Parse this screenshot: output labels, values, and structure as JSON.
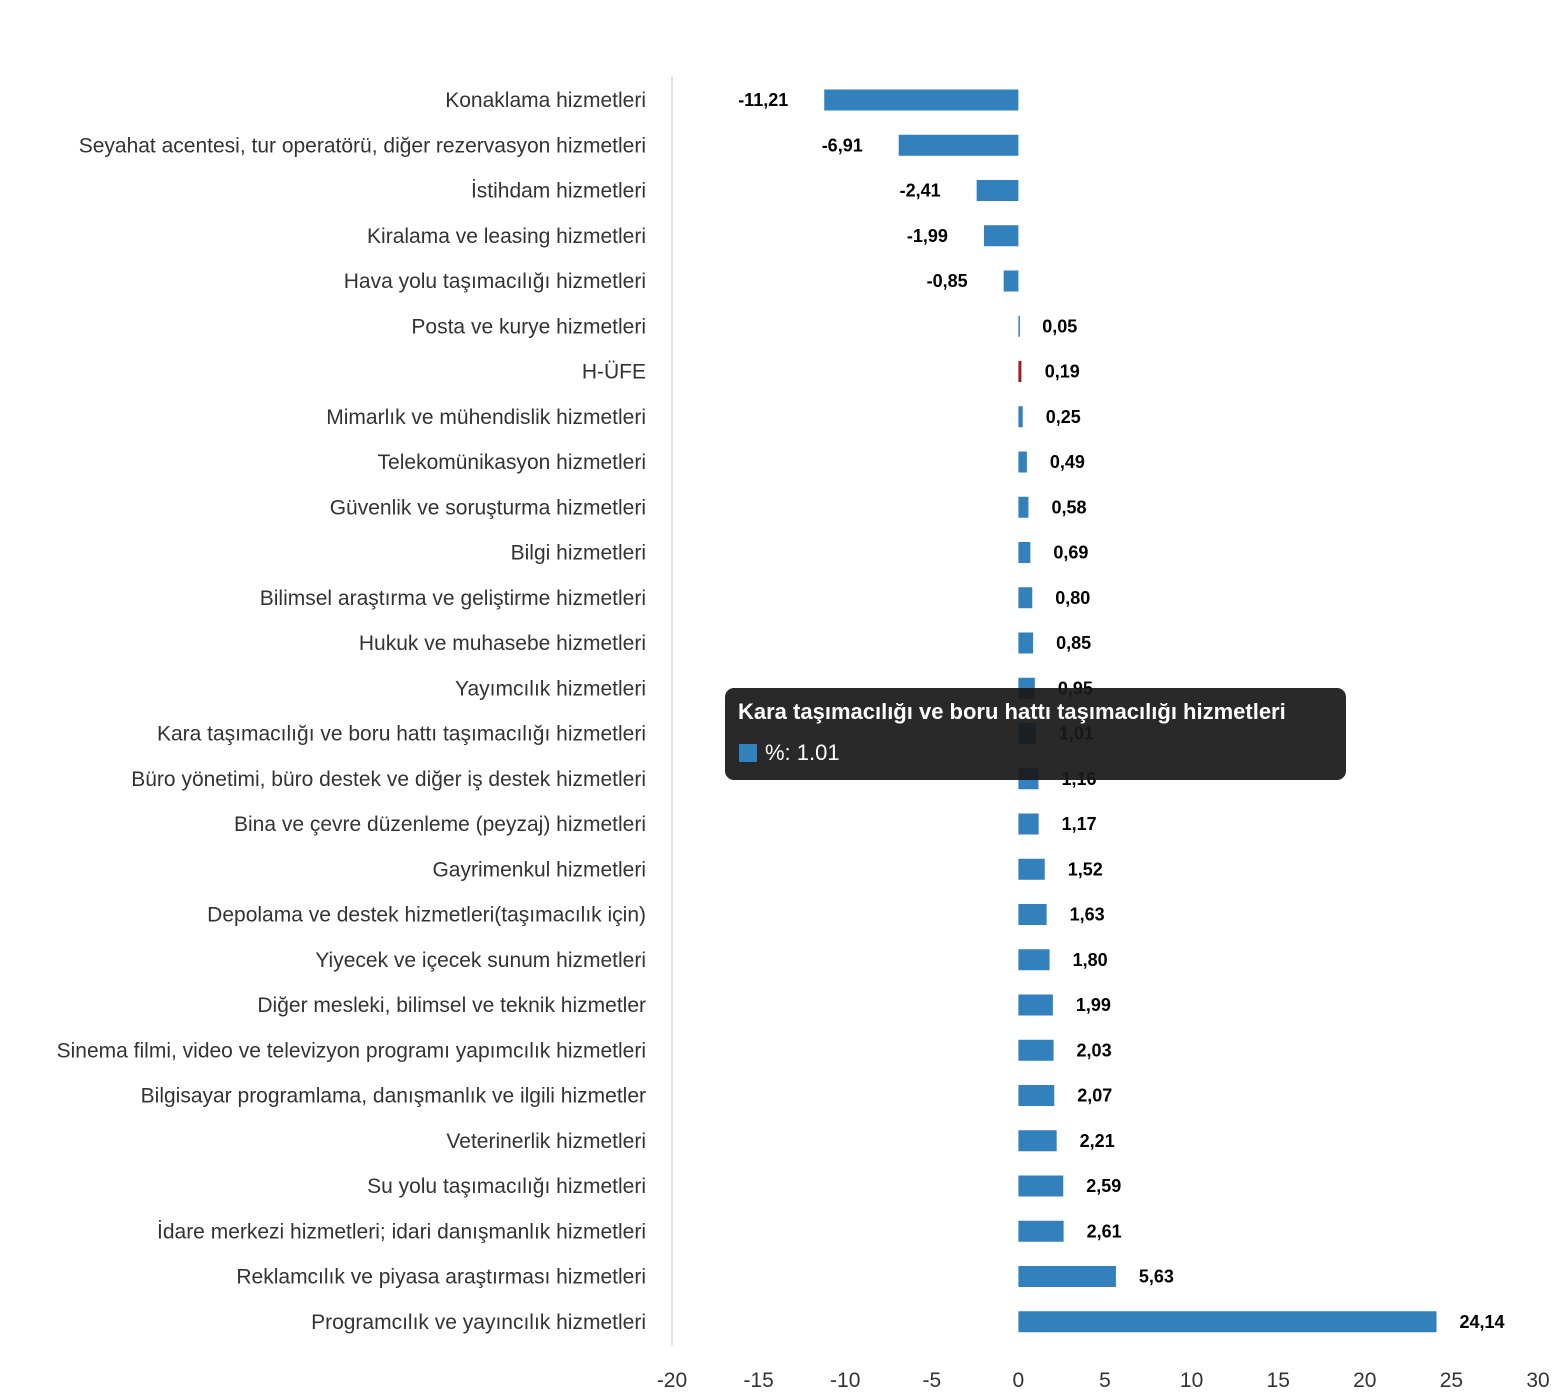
{
  "chart_data": {
    "type": "bar",
    "orientation": "horizontal",
    "categories": [
      "Konaklama hizmetleri",
      "Seyahat acentesi, tur operatörü, diğer rezervasyon hizmetleri",
      "İstihdam hizmetleri",
      "Kiralama ve leasing hizmetleri",
      "Hava yolu taşımacılığı hizmetleri",
      "Posta ve kurye hizmetleri",
      "H-ÜFE",
      "Mimarlık ve mühendislik hizmetleri",
      "Telekomünikasyon hizmetleri",
      "Güvenlik ve soruşturma hizmetleri",
      "Bilgi hizmetleri",
      "Bilimsel araştırma ve geliştirme hizmetleri",
      "Hukuk ve muhasebe hizmetleri",
      "Yayımcılık hizmetleri",
      "Kara taşımacılığı ve boru hattı taşımacılığı hizmetleri",
      "Büro yönetimi, büro destek ve diğer iş destek hizmetleri",
      "Bina ve çevre düzenleme (peyzaj) hizmetleri",
      "Gayrimenkul hizmetleri",
      "Depolama ve destek hizmetleri(taşımacılık için)",
      "Yiyecek ve içecek sunum hizmetleri",
      "Diğer mesleki, bilimsel ve teknik hizmetler",
      "Sinema filmi, video ve televizyon programı yapımcılık hizmetleri",
      "Bilgisayar programlama, danışmanlık ve ilgili hizmetler",
      "Veterinerlik hizmetleri",
      "Su yolu taşımacılığı hizmetleri",
      "İdare merkezi hizmetleri; idari danışmanlık hizmetleri",
      "Reklamcılık ve piyasa araştırması hizmetleri",
      "Programcılık ve yayıncılık hizmetleri"
    ],
    "values": [
      -11.21,
      -6.91,
      -2.41,
      -1.99,
      -0.85,
      0.05,
      0.19,
      0.25,
      0.49,
      0.58,
      0.69,
      0.8,
      0.85,
      0.95,
      1.01,
      1.16,
      1.17,
      1.52,
      1.63,
      1.8,
      1.99,
      2.03,
      2.07,
      2.21,
      2.59,
      2.61,
      5.63,
      24.14
    ],
    "value_labels": [
      "-11,21",
      "-6,91",
      "-2,41",
      "-1,99",
      "-0,85",
      "0,05",
      "0,19",
      "0,25",
      "0,49",
      "0,58",
      "0,69",
      "0,80",
      "0,85",
      "0,95",
      "1,01",
      "1,16",
      "1,17",
      "1,52",
      "1,63",
      "1,80",
      "1,99",
      "2,03",
      "2,07",
      "2,21",
      "2,59",
      "2,61",
      "5,63",
      "24,14"
    ],
    "xlim": [
      -20,
      30
    ],
    "x_ticks": [
      -20,
      -15,
      -10,
      -5,
      0,
      5,
      10,
      15,
      20,
      25,
      30
    ],
    "x_tick_labels": [
      "-20",
      "-15",
      "-10",
      "-5",
      "0",
      "5",
      "10",
      "15",
      "20",
      "25",
      "30"
    ],
    "grid": false,
    "legend": false,
    "bar_color": "#3280bc",
    "highlight_category": "H-ÜFE",
    "highlight_color": "#a51c1f",
    "hovered_category": "Kara taşımacılığı ve boru hattı taşımacılığı hizmetleri"
  },
  "tooltip": {
    "title": "Kara taşımacılığı ve boru hattı taşımacılığı hizmetleri",
    "series_label": "%: 1.01",
    "swatch_color": "#3280bc"
  }
}
